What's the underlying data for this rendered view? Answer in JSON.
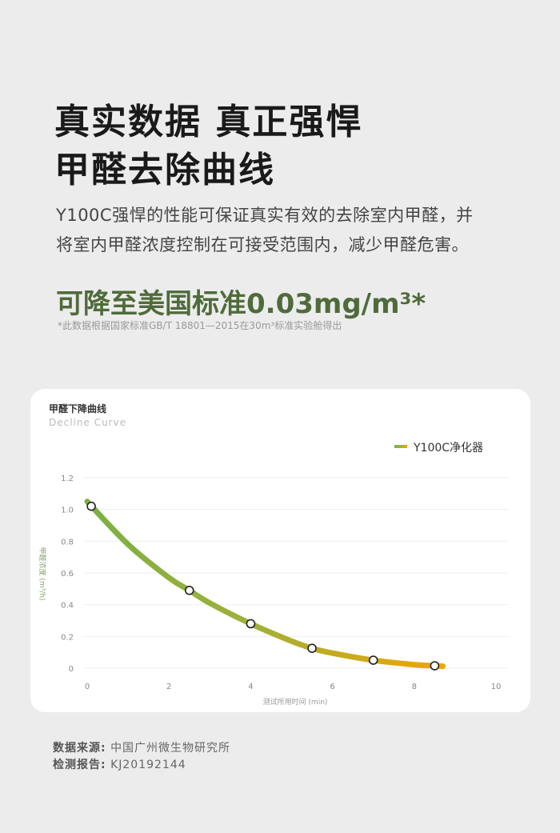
{
  "headline": {
    "line1": "真实数据 真正强悍",
    "line2": "甲醛去除曲线"
  },
  "description": {
    "line1": "Y100C强悍的性能可保证真实有效的去除室内甲醛，并",
    "line2": "将室内甲醛浓度控制在可接受范围内，减少甲醛危害。"
  },
  "highlight": "可降至美国标准0.03mg/m³*",
  "footnote": "*此数据根据国家标准GB/T 18801—2015在30m³标准实验舱得出",
  "colors": {
    "accent": "#4f6b3a",
    "curve_start": "#7bb043",
    "curve_end": "#f0a500"
  },
  "chart_data": {
    "type": "line",
    "title": "甲醛下降曲线",
    "subtitle": "Decline Curve",
    "xlabel": "测试所用时间 (min)",
    "ylabel": "甲醛浓度 (m³/h)",
    "xlim": [
      0,
      10
    ],
    "ylim": [
      0,
      1.2
    ],
    "xticks": [
      "0",
      "2",
      "4",
      "6",
      "8",
      "10"
    ],
    "yticks": [
      "0",
      "0.2",
      "0.4",
      "0.6",
      "0.8",
      "1.0",
      "1.2"
    ],
    "grid": true,
    "legend_position": "top-right",
    "series": [
      {
        "name": "Y100C净化器",
        "curve": [
          [
            0,
            1.05
          ],
          [
            1,
            0.78
          ],
          [
            2,
            0.57
          ],
          [
            2.5,
            0.49
          ],
          [
            3,
            0.41
          ],
          [
            4,
            0.28
          ],
          [
            5,
            0.17
          ],
          [
            5.5,
            0.125
          ],
          [
            6,
            0.095
          ],
          [
            7,
            0.05
          ],
          [
            8,
            0.022
          ],
          [
            8.5,
            0.015
          ],
          [
            8.7,
            0.012
          ]
        ],
        "markers": [
          [
            0.1,
            1.02
          ],
          [
            2.5,
            0.49
          ],
          [
            4,
            0.28
          ],
          [
            5.5,
            0.125
          ],
          [
            7,
            0.05
          ],
          [
            8.5,
            0.015
          ]
        ]
      }
    ]
  },
  "source": {
    "label": "数据来源:",
    "value": "中国广州微生物研究所"
  },
  "report": {
    "label": "检测报告:",
    "value": "KJ20192144"
  }
}
